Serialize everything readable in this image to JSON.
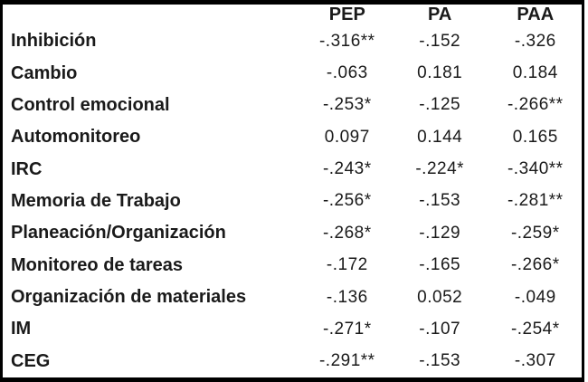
{
  "colors": {
    "border": "#000000",
    "text": "#1a1a1a",
    "background": "#ffffff"
  },
  "chart_data": {
    "type": "table",
    "title": "",
    "columns": [
      "PEP",
      "PA",
      "PAA"
    ],
    "corner_label": "",
    "rows": [
      {
        "label": "Inhibición",
        "values": [
          "-.316**",
          "-.152",
          "-.326"
        ]
      },
      {
        "label": "Cambio",
        "values": [
          "-.063",
          "0.181",
          "0.184"
        ]
      },
      {
        "label": "Control emocional",
        "values": [
          "-.253*",
          "-.125",
          "-.266**"
        ]
      },
      {
        "label": "Automonitoreo",
        "values": [
          "0.097",
          "0.144",
          "0.165"
        ]
      },
      {
        "label": "IRC",
        "values": [
          "-.243*",
          "-.224*",
          "-.340**"
        ]
      },
      {
        "label": "Memoria de Trabajo",
        "values": [
          "-.256*",
          "-.153",
          "-.281**"
        ]
      },
      {
        "label": "Planeación/Organización",
        "values": [
          "-.268*",
          "-.129",
          "-.259*"
        ]
      },
      {
        "label": "Monitoreo de tareas",
        "values": [
          "-.172",
          "-.165",
          "-.266*"
        ]
      },
      {
        "label": "Organización de materiales",
        "values": [
          "-.136",
          "0.052",
          "-.049"
        ]
      },
      {
        "label": "IM",
        "values": [
          "-.271*",
          "-.107",
          "-.254*"
        ]
      },
      {
        "label": "CEG",
        "values": [
          "-.291**",
          "-.153",
          "-.307"
        ]
      }
    ]
  }
}
